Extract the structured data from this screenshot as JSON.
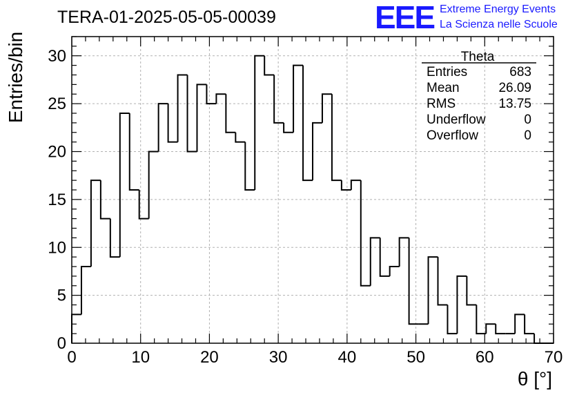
{
  "title": "TERA-01-2025-05-05-00039",
  "logo": {
    "text": "EEE",
    "line1": "Extreme Energy Events",
    "line2": "La Scienza nelle Scuole",
    "color": "#1a1aff"
  },
  "stats_box": {
    "name": "Theta",
    "rows": [
      {
        "label": "Entries",
        "value": "683"
      },
      {
        "label": "Mean",
        "value": "26.09"
      },
      {
        "label": "RMS",
        "value": "13.75"
      },
      {
        "label": "Underflow",
        "value": "0"
      },
      {
        "label": "Overflow",
        "value": "0"
      }
    ]
  },
  "chart_data": {
    "type": "histogram",
    "title": "TERA-01-2025-05-05-00039",
    "xlabel": "θ [°]",
    "ylabel": "Entries/bin",
    "xlim": [
      0,
      70
    ],
    "ylim": [
      0,
      32
    ],
    "x_ticks": [
      0,
      10,
      20,
      30,
      40,
      50,
      60,
      70
    ],
    "y_ticks": [
      0,
      5,
      10,
      15,
      20,
      25,
      30
    ],
    "grid": true,
    "bin_width": 1.4,
    "bin_start": 0,
    "values": [
      3,
      8,
      17,
      13,
      9,
      24,
      16,
      13,
      20,
      25,
      21,
      28,
      20,
      27,
      25,
      26,
      22,
      21,
      16,
      30,
      28,
      23,
      22,
      29,
      17,
      23,
      26,
      17,
      16,
      17,
      6,
      11,
      7,
      8,
      11,
      2,
      2,
      9,
      4,
      1,
      7,
      4,
      1,
      2,
      1,
      1,
      3,
      1,
      0,
      0
    ],
    "line_color": "#000000"
  }
}
